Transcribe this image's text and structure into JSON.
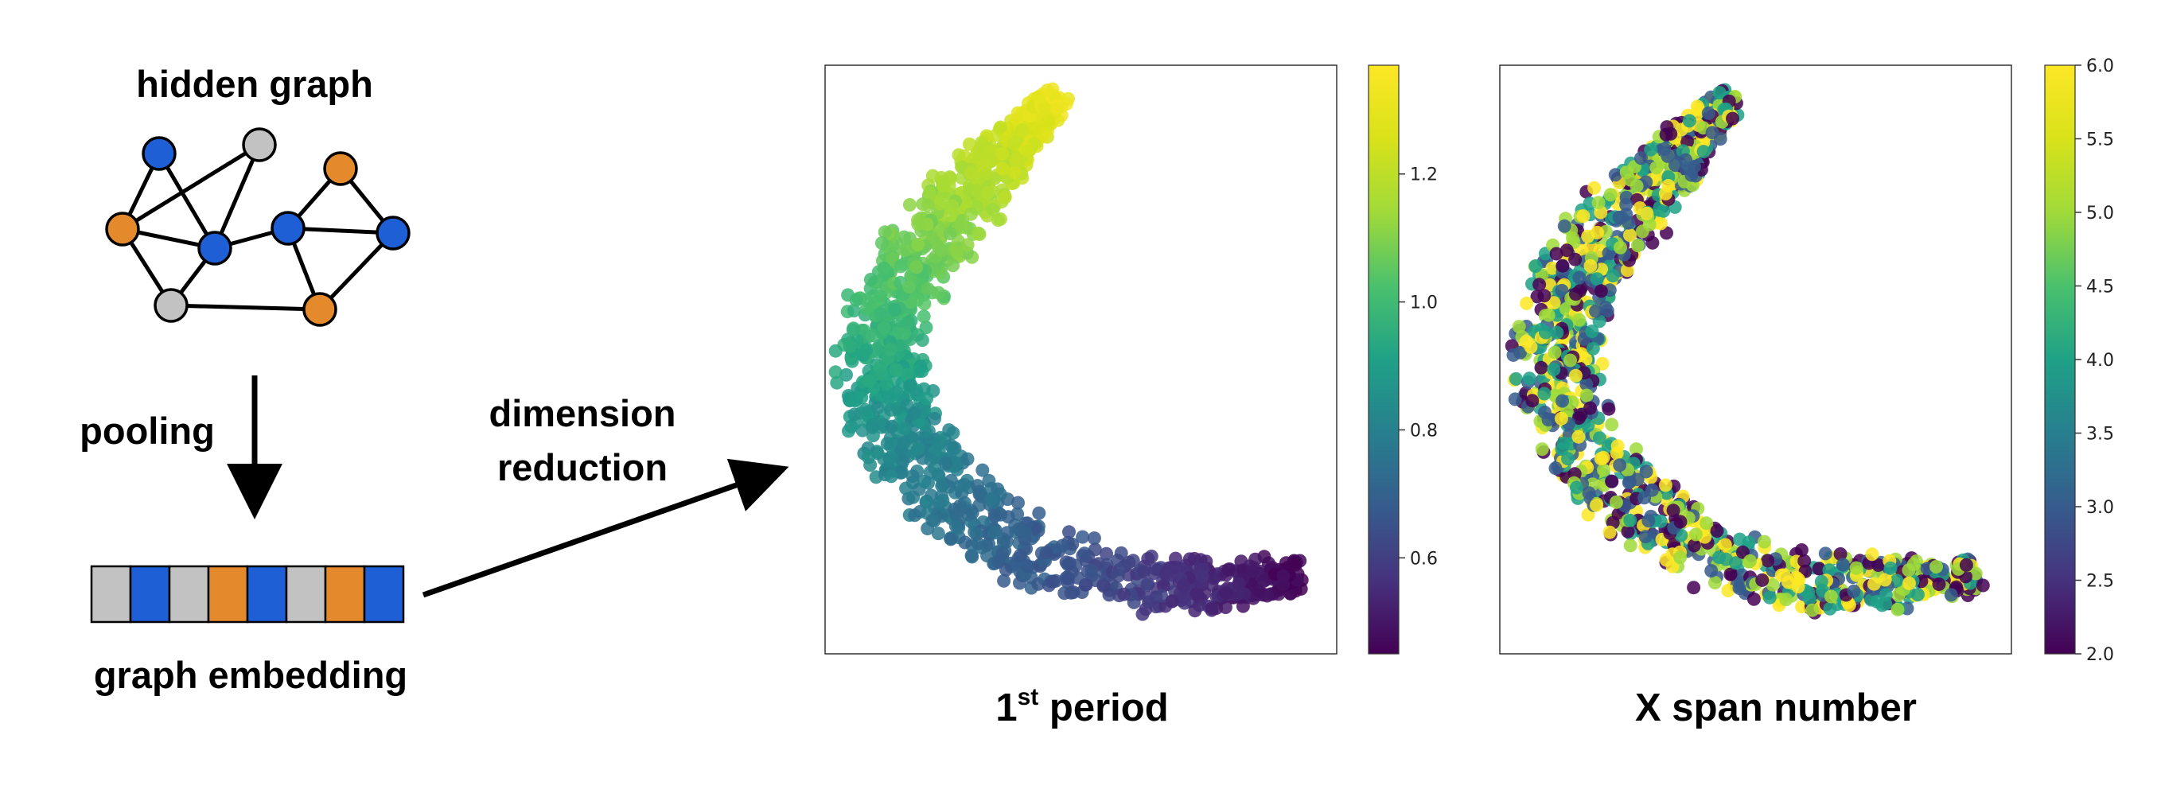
{
  "labels": {
    "hidden_graph": "hidden graph",
    "pooling": "pooling",
    "dimension_line1": "dimension",
    "dimension_line2": "reduction",
    "graph_embedding": "graph embedding"
  },
  "colors": {
    "blue": "#1f5fd6",
    "orange": "#e58a2c",
    "gray": "#c2c2c2"
  },
  "graph": {
    "nodes": [
      {
        "id": "n1",
        "color": "blue"
      },
      {
        "id": "n2",
        "color": "gray"
      },
      {
        "id": "n3",
        "color": "orange"
      },
      {
        "id": "n4",
        "color": "orange"
      },
      {
        "id": "n5",
        "color": "blue"
      },
      {
        "id": "n6",
        "color": "blue"
      },
      {
        "id": "n7",
        "color": "blue"
      },
      {
        "id": "n8",
        "color": "gray"
      },
      {
        "id": "n9",
        "color": "orange"
      }
    ],
    "edges": [
      [
        "n1",
        "n3"
      ],
      [
        "n1",
        "n5"
      ],
      [
        "n3",
        "n2"
      ],
      [
        "n2",
        "n5"
      ],
      [
        "n3",
        "n5"
      ],
      [
        "n3",
        "n8"
      ],
      [
        "n5",
        "n8"
      ],
      [
        "n5",
        "n6"
      ],
      [
        "n6",
        "n4"
      ],
      [
        "n4",
        "n7"
      ],
      [
        "n6",
        "n7"
      ],
      [
        "n6",
        "n9"
      ],
      [
        "n7",
        "n9"
      ],
      [
        "n8",
        "n9"
      ]
    ]
  },
  "embedding": [
    "gray",
    "blue",
    "gray",
    "orange",
    "blue",
    "gray",
    "orange",
    "blue"
  ],
  "chart_data": [
    {
      "type": "scatter",
      "title_main": "1",
      "title_sup": "st",
      "title_rest": " period",
      "colormap": "viridis",
      "colorbar_range": [
        0.45,
        1.37
      ],
      "colorbar_ticks": [
        "0.6",
        "0.8",
        "1.0",
        "1.2"
      ],
      "colorbar_tick_values": [
        0.6,
        0.8,
        1.0,
        1.2
      ],
      "color_mode": "gradient-along-arc",
      "axes": "hidden"
    },
    {
      "type": "scatter",
      "title_main": "X span number",
      "title_sup": "",
      "title_rest": "",
      "colormap": "viridis",
      "colorbar_range": [
        2.0,
        6.0
      ],
      "colorbar_ticks": [
        "2.0",
        "2.5",
        "3.0",
        "3.5",
        "4.0",
        "4.5",
        "5.0",
        "5.5",
        "6.0"
      ],
      "colorbar_tick_values": [
        2.0,
        2.5,
        3.0,
        3.5,
        4.0,
        4.5,
        5.0,
        5.5,
        6.0
      ],
      "color_mode": "random-integers",
      "axes": "hidden"
    }
  ]
}
